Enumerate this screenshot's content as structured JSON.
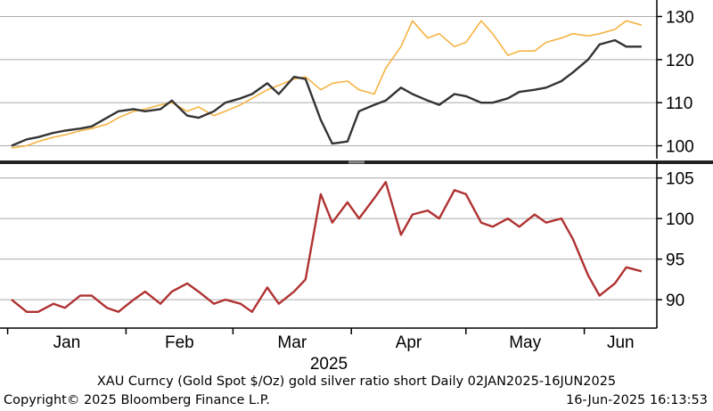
{
  "chart_data": [
    {
      "type": "line",
      "panel": "top",
      "y_axis_side": "right",
      "ylim": [
        97,
        133
      ],
      "yticks": [
        100,
        110,
        120,
        130
      ],
      "grid": true,
      "series": [
        {
          "color": "#f5b342",
          "x": [
            "2025-01-02",
            "2025-01-06",
            "2025-01-09",
            "2025-01-13",
            "2025-01-16",
            "2025-01-20",
            "2025-01-23",
            "2025-01-27",
            "2025-01-30",
            "2025-02-03",
            "2025-02-06",
            "2025-02-10",
            "2025-02-13",
            "2025-02-17",
            "2025-02-20",
            "2025-02-24",
            "2025-02-27",
            "2025-03-03",
            "2025-03-06",
            "2025-03-10",
            "2025-03-13",
            "2025-03-17",
            "2025-03-20",
            "2025-03-24",
            "2025-03-27",
            "2025-03-31",
            "2025-04-03",
            "2025-04-07",
            "2025-04-10",
            "2025-04-14",
            "2025-04-17",
            "2025-04-21",
            "2025-04-24",
            "2025-04-28",
            "2025-05-01",
            "2025-05-05",
            "2025-05-08",
            "2025-05-12",
            "2025-05-15",
            "2025-05-19",
            "2025-05-22",
            "2025-05-26",
            "2025-05-29",
            "2025-06-02",
            "2025-06-05",
            "2025-06-09",
            "2025-06-12",
            "2025-06-16"
          ],
          "values": [
            99.5,
            100,
            101,
            102,
            102.5,
            103.5,
            104,
            105,
            106.5,
            108,
            108.5,
            109.5,
            110,
            108,
            109,
            107,
            108,
            109.5,
            111,
            113,
            114,
            115.5,
            116,
            113,
            114.5,
            115,
            113,
            112,
            118,
            123,
            129,
            125,
            126,
            123,
            124,
            129,
            126,
            121,
            122,
            122,
            124,
            125,
            126,
            125.5,
            126,
            127,
            129,
            128
          ]
        },
        {
          "color": "#333333",
          "x": [
            "2025-01-02",
            "2025-01-06",
            "2025-01-09",
            "2025-01-13",
            "2025-01-16",
            "2025-01-20",
            "2025-01-23",
            "2025-01-27",
            "2025-01-30",
            "2025-02-03",
            "2025-02-06",
            "2025-02-10",
            "2025-02-13",
            "2025-02-17",
            "2025-02-20",
            "2025-02-24",
            "2025-02-27",
            "2025-03-03",
            "2025-03-06",
            "2025-03-10",
            "2025-03-13",
            "2025-03-17",
            "2025-03-20",
            "2025-03-24",
            "2025-03-27",
            "2025-03-31",
            "2025-04-03",
            "2025-04-07",
            "2025-04-10",
            "2025-04-14",
            "2025-04-17",
            "2025-04-21",
            "2025-04-24",
            "2025-04-28",
            "2025-05-01",
            "2025-05-05",
            "2025-05-08",
            "2025-05-12",
            "2025-05-15",
            "2025-05-19",
            "2025-05-22",
            "2025-05-26",
            "2025-05-29",
            "2025-06-02",
            "2025-06-05",
            "2025-06-09",
            "2025-06-12",
            "2025-06-16"
          ],
          "values": [
            100,
            101.5,
            102,
            103,
            103.5,
            104,
            104.5,
            106.5,
            108,
            108.5,
            108,
            108.5,
            110.5,
            107,
            106.5,
            108,
            110,
            111,
            112,
            114.5,
            112,
            116,
            115.5,
            106,
            100.5,
            101,
            108,
            109.5,
            110.5,
            113.5,
            112,
            110.5,
            109.5,
            112,
            111.5,
            110,
            110,
            111,
            112.5,
            113,
            113.5,
            115,
            117,
            120,
            123.5,
            124.5,
            123,
            123
          ]
        }
      ]
    },
    {
      "type": "line",
      "panel": "bottom",
      "y_axis_side": "right",
      "ylim": [
        86.5,
        106.5
      ],
      "yticks": [
        90,
        95,
        100,
        105
      ],
      "grid": true,
      "series": [
        {
          "color": "#b03232",
          "x": [
            "2025-01-02",
            "2025-01-06",
            "2025-01-09",
            "2025-01-13",
            "2025-01-16",
            "2025-01-20",
            "2025-01-23",
            "2025-01-27",
            "2025-01-30",
            "2025-02-03",
            "2025-02-06",
            "2025-02-10",
            "2025-02-13",
            "2025-02-17",
            "2025-02-20",
            "2025-02-24",
            "2025-02-27",
            "2025-03-03",
            "2025-03-06",
            "2025-03-10",
            "2025-03-13",
            "2025-03-17",
            "2025-03-20",
            "2025-03-24",
            "2025-03-27",
            "2025-03-31",
            "2025-04-03",
            "2025-04-07",
            "2025-04-10",
            "2025-04-14",
            "2025-04-17",
            "2025-04-21",
            "2025-04-24",
            "2025-04-28",
            "2025-05-01",
            "2025-05-05",
            "2025-05-08",
            "2025-05-12",
            "2025-05-15",
            "2025-05-19",
            "2025-05-22",
            "2025-05-26",
            "2025-05-29",
            "2025-06-02",
            "2025-06-05",
            "2025-06-09",
            "2025-06-12",
            "2025-06-16"
          ],
          "values": [
            90,
            88.5,
            88.5,
            89.5,
            89,
            90.5,
            90.5,
            89,
            88.5,
            90,
            91,
            89.5,
            91,
            92,
            91,
            89.5,
            90,
            89.5,
            88.5,
            91.5,
            89.5,
            91,
            92.5,
            103,
            99.5,
            102,
            100,
            102.5,
            104.5,
            98,
            100.5,
            101,
            100,
            103.5,
            103,
            99.5,
            99,
            100,
            99,
            100.5,
            99.5,
            100,
            97.5,
            93,
            90.5,
            92,
            94,
            93.5
          ]
        }
      ]
    }
  ],
  "x_axis": {
    "months": [
      "Jan",
      "Feb",
      "Mar",
      "Apr",
      "May",
      "Jun"
    ],
    "year": "2025"
  },
  "footer": {
    "line1": "XAU Curncy (Gold Spot  $/Oz) gold silver ratio short  Daily 02JAN2025-16JUN2025",
    "copyright": "Copyright© 2025 Bloomberg Finance L.P.",
    "timestamp": "16-Jun-2025 16:13:53"
  },
  "colors": {
    "grid": "#aaaaaa",
    "axis": "#000000",
    "divider": "#222222"
  }
}
